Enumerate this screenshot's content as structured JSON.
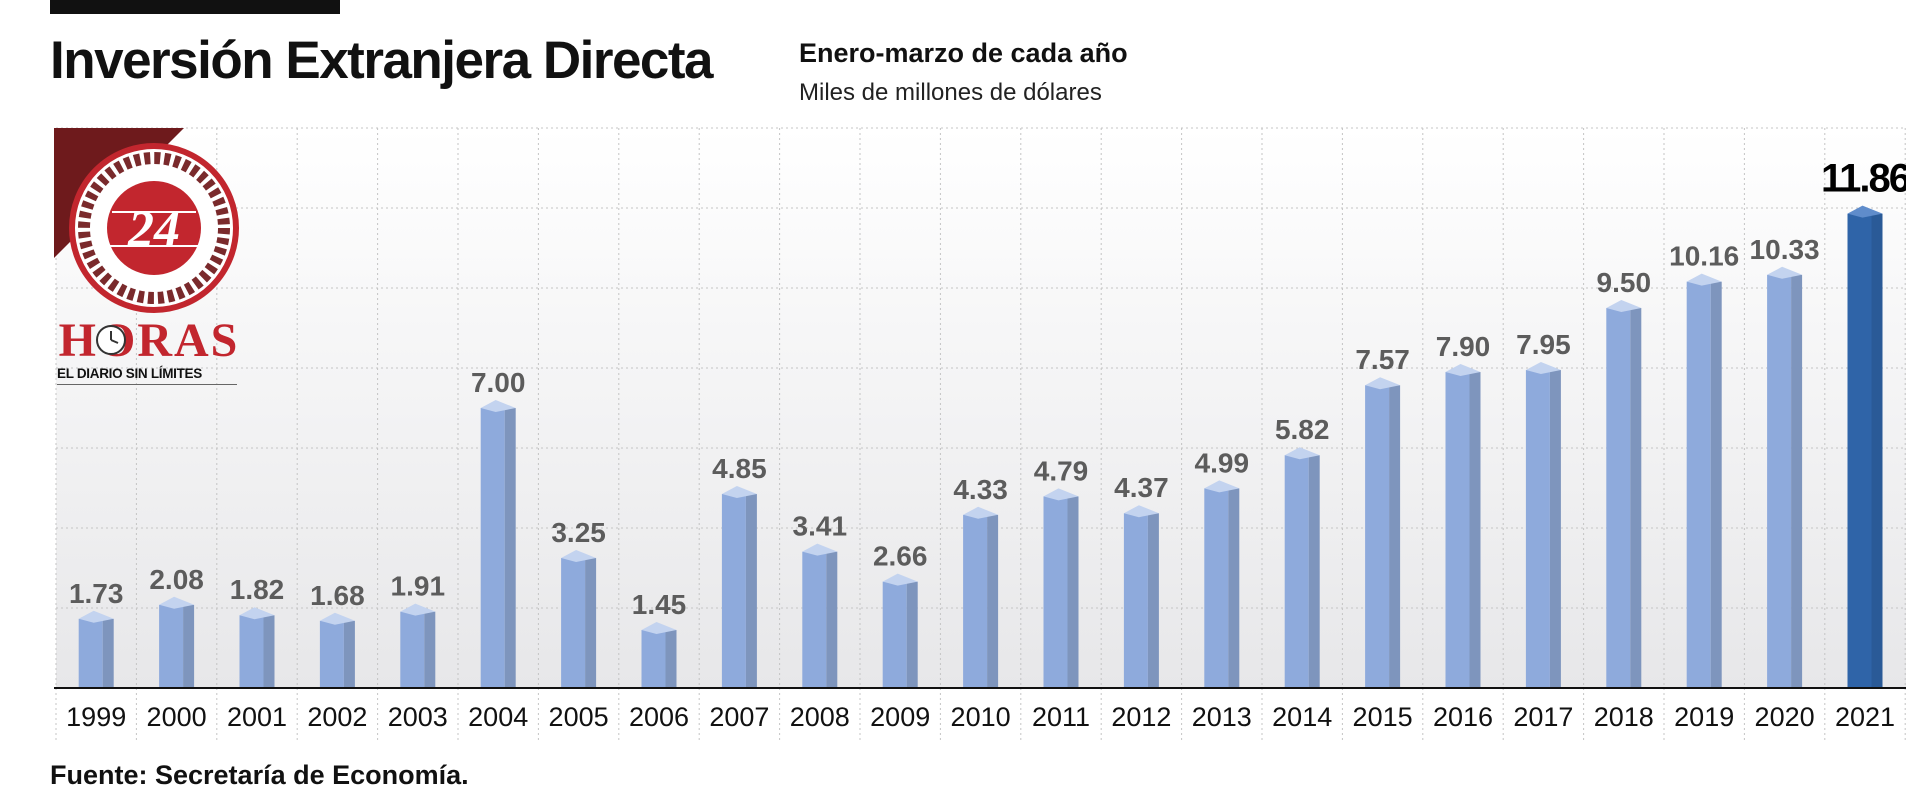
{
  "header": {
    "title": "Inversión Extranjera Directa",
    "subtitle": "Enero-marzo de cada año",
    "units": "Miles de millones de dólares"
  },
  "footer": {
    "source": "Fuente: Secretaría de Economía."
  },
  "logo": {
    "number": "24",
    "name": "HORAS",
    "tagline": "EL DIARIO SIN LÍMITES"
  },
  "colors": {
    "bar_face": "#8eaadc",
    "bar_side": "#7e95bd",
    "bar_top": "#c3d3ef",
    "highlight_face": "#2f64a8",
    "highlight_side": "#2a5a97",
    "highlight_top": "#5f8ccb",
    "label": "#5c5c5c",
    "highlight_label": "#000000",
    "logo_red": "#c2262e",
    "logo_dark": "#6e1a1c"
  },
  "chart_data": {
    "type": "bar",
    "categories": [
      "1999",
      "2000",
      "2001",
      "2002",
      "2003",
      "2004",
      "2005",
      "2006",
      "2007",
      "2008",
      "2009",
      "2010",
      "2011",
      "2012",
      "2013",
      "2014",
      "2015",
      "2016",
      "2017",
      "2018",
      "2019",
      "2020",
      "2021"
    ],
    "values": [
      1.73,
      2.08,
      1.82,
      1.68,
      1.91,
      7.0,
      3.25,
      1.45,
      4.85,
      3.41,
      2.66,
      4.33,
      4.79,
      4.37,
      4.99,
      5.82,
      7.57,
      7.9,
      7.95,
      9.5,
      10.16,
      10.33,
      11.86
    ],
    "labels": [
      "1.73",
      "2.08",
      "1.82",
      "1.68",
      "1.91",
      "7.00",
      "3.25",
      "1.45",
      "4.85",
      "3.41",
      "2.66",
      "4.33",
      "4.79",
      "4.37",
      "4.99",
      "5.82",
      "7.57",
      "7.90",
      "7.95",
      "9.50",
      "10.16",
      "10.33",
      "11.86"
    ],
    "highlight": "2021",
    "title": "Inversión Extranjera Directa",
    "subtitle": "Enero-marzo de cada año",
    "ylabel": "Miles de millones de dólares",
    "xlabel": "",
    "ylim": [
      0,
      14
    ],
    "grid": true,
    "legend": "none"
  }
}
